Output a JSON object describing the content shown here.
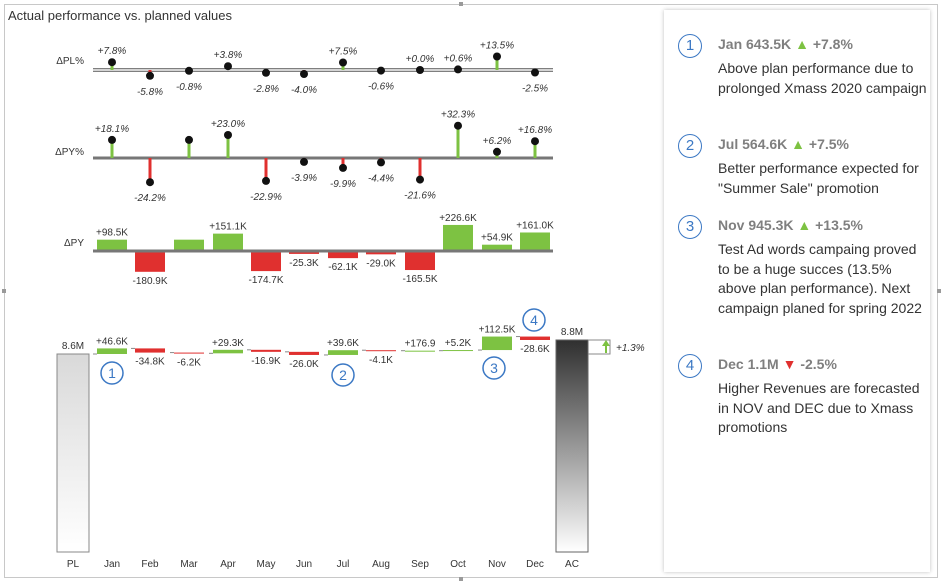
{
  "title": "Actual performance vs. planned values",
  "rows": {
    "dpl_label": "ΔPL%",
    "dpy_label": "ΔPY%",
    "dpyabs_label": "ΔPY"
  },
  "colors": {
    "positive": "#7dc242",
    "negative": "#e0302f",
    "axis": "#777777",
    "marker": "#111111",
    "accent": "#3b78c4"
  },
  "chart_data": [
    {
      "type": "lollipop",
      "ylabel": "ΔPL%",
      "categories": [
        "Jan",
        "Feb",
        "Mar",
        "Apr",
        "May",
        "Jun",
        "Jul",
        "Aug",
        "Sep",
        "Oct",
        "Nov",
        "Dec"
      ],
      "values": [
        7.8,
        -5.8,
        -0.8,
        3.8,
        -2.8,
        -4.0,
        7.5,
        -0.6,
        0.0,
        0.6,
        13.5,
        -2.5
      ],
      "labels": [
        "+7.8%",
        "-5.8%",
        "-0.8%",
        "+3.8%",
        "-2.8%",
        "-4.0%",
        "+7.5%",
        "-0.6%",
        "+0.0%",
        "+0.6%",
        "+13.5%",
        "-2.5%"
      ]
    },
    {
      "type": "lollipop",
      "ylabel": "ΔPY%",
      "categories": [
        "Jan",
        "Feb",
        "Mar",
        "Apr",
        "May",
        "Jun",
        "Jul",
        "Aug",
        "Sep",
        "Oct",
        "Nov",
        "Dec"
      ],
      "values": [
        18.1,
        -24.2,
        18.1,
        23.0,
        -22.9,
        -3.9,
        -9.9,
        -4.4,
        -21.6,
        32.3,
        6.2,
        16.8
      ],
      "labels": [
        "+18.1%",
        "-24.2%",
        "",
        "+23.0%",
        "-22.9%",
        "-3.9%",
        "-9.9%",
        "-4.4%",
        "-21.6%",
        "+32.3%",
        "+6.2%",
        "+16.8%"
      ]
    },
    {
      "type": "bar",
      "ylabel": "ΔPY",
      "categories": [
        "Jan",
        "Feb",
        "Mar",
        "Apr",
        "May",
        "Jun",
        "Jul",
        "Aug",
        "Sep",
        "Oct",
        "Nov",
        "Dec"
      ],
      "values": [
        98.5,
        -180.9,
        98.5,
        151.1,
        -174.7,
        -25.3,
        -62.1,
        -29.0,
        -165.5,
        226.6,
        54.9,
        161.0
      ],
      "labels": [
        "+98.5K",
        "-180.9K",
        "",
        "+151.1K",
        "-174.7K",
        "-25.3K",
        "-62.1K",
        "-29.0K",
        "-165.5K",
        "+226.6K",
        "+54.9K",
        "+161.0K"
      ]
    },
    {
      "type": "waterfall",
      "categories": [
        "PL",
        "Jan",
        "Feb",
        "Mar",
        "Apr",
        "May",
        "Jun",
        "Jul",
        "Aug",
        "Sep",
        "Oct",
        "Nov",
        "Dec",
        "AC"
      ],
      "start": {
        "value": 8.6,
        "label": "8.6M"
      },
      "deltas": [
        46.6,
        -34.8,
        -6.2,
        29.3,
        -16.9,
        -26.0,
        39.6,
        -4.1,
        0.1769,
        5.2,
        112.5,
        -28.6
      ],
      "labels": [
        "+46.6K",
        "-34.8K",
        "-6.2K",
        "+29.3K",
        "-16.9K",
        "-26.0K",
        "+39.6K",
        "-4.1K",
        "+176.9",
        "+5.2K",
        "+112.5K",
        "-28.6K"
      ],
      "end": {
        "value": 8.8,
        "label": "8.8M"
      },
      "variance_label": "+1.3%",
      "markers": [
        {
          "month": "Jan",
          "n": "1"
        },
        {
          "month": "Jul",
          "n": "2"
        },
        {
          "month": "Nov",
          "n": "3"
        },
        {
          "month": "Dec",
          "n": "4"
        }
      ]
    }
  ],
  "comments": [
    {
      "n": "1",
      "head": "Jan 643.5K",
      "arrow": "▲",
      "dir": "up",
      "pct": "+7.8%",
      "text": "Above plan performance due to prolonged Xmass 2020 campaign"
    },
    {
      "n": "2",
      "head": "Jul 564.6K",
      "arrow": "▲",
      "dir": "up",
      "pct": "+7.5%",
      "text": "Better performance expected for \"Summer Sale\" promotion"
    },
    {
      "n": "3",
      "head": "Nov 945.3K",
      "arrow": "▲",
      "dir": "up",
      "pct": "+13.5%",
      "text": "Test Ad words campaing proved to be a huge succes (13.5% above plan performance). Next campaign planed for spring 2022"
    },
    {
      "n": "4",
      "head": "Dec 1.1M",
      "arrow": "▼",
      "dir": "down",
      "pct": "-2.5%",
      "text": "Higher Revenues are forecasted in NOV and DEC due to Xmass promotions"
    }
  ]
}
